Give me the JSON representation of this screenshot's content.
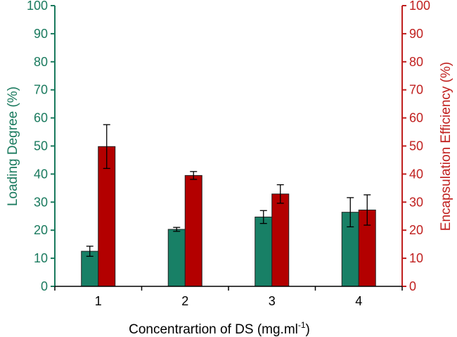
{
  "chart_data": {
    "type": "bar",
    "title": "",
    "xlabel": "Concentrartion of DS (mg.ml",
    "xlabel_superscript": "-1",
    "xlabel_suffix": ")",
    "categories": [
      "1",
      "2",
      "3",
      "4"
    ],
    "left_axis": {
      "label": "Loading Degree (%)",
      "ylim": [
        0,
        100
      ],
      "ticks": [
        "0",
        "10",
        "20",
        "30",
        "40",
        "50",
        "60",
        "70",
        "80",
        "90",
        "100"
      ],
      "color": "#1a7a5e"
    },
    "right_axis": {
      "label": "Encapsulation Efficiency (%)",
      "ylim": [
        0,
        100
      ],
      "ticks": [
        "0",
        "10",
        "20",
        "30",
        "40",
        "50",
        "60",
        "70",
        "80",
        "90",
        "100"
      ],
      "color": "#c0201f"
    },
    "series": [
      {
        "name": "Loading Degree",
        "axis": "left",
        "color": "#188066",
        "values": [
          12.5,
          20.3,
          24.7,
          26.4
        ],
        "errors": [
          1.8,
          0.7,
          2.3,
          5.2
        ]
      },
      {
        "name": "Encapsulation Efficiency",
        "axis": "right",
        "color": "#b30000",
        "values": [
          49.8,
          39.5,
          32.9,
          27.2
        ],
        "errors": [
          7.8,
          1.4,
          3.3,
          5.4
        ]
      }
    ],
    "grid": false,
    "legend": "none"
  }
}
